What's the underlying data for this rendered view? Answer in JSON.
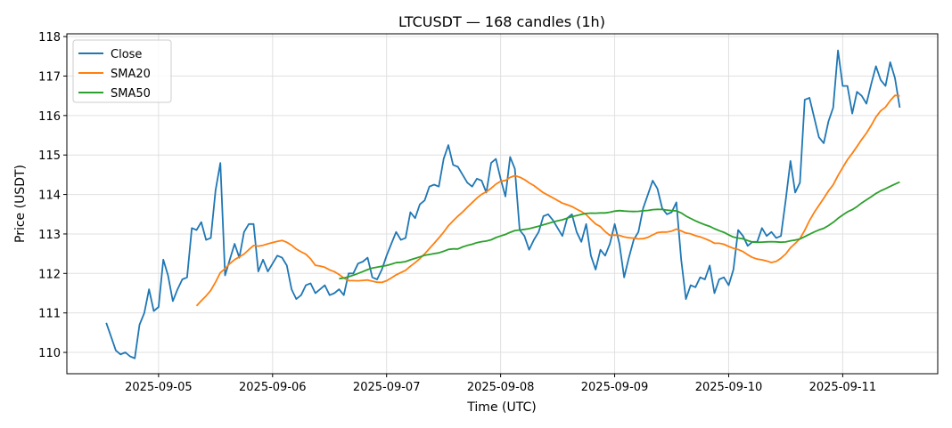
{
  "chart_data": {
    "type": "line",
    "title": "LTCUSDT — 168 candles (1h)",
    "xlabel": "Time (UTC)",
    "ylabel": "Price (USDT)",
    "start_time": "2025-09-04 13:00",
    "interval_hours": 1,
    "xlim_hours_from_start": [
      -8.3,
      175
    ],
    "ylim": [
      109.46,
      118.07
    ],
    "grid": true,
    "legend_position": "top-left",
    "x_ticks": [
      {
        "label": "2025-09-05",
        "hour": 11
      },
      {
        "label": "2025-09-06",
        "hour": 35
      },
      {
        "label": "2025-09-07",
        "hour": 59
      },
      {
        "label": "2025-09-08",
        "hour": 83
      },
      {
        "label": "2025-09-09",
        "hour": 107
      },
      {
        "label": "2025-09-10",
        "hour": 131
      },
      {
        "label": "2025-09-11",
        "hour": 155
      }
    ],
    "y_ticks": [
      110,
      111,
      112,
      113,
      114,
      115,
      116,
      117,
      118
    ],
    "series": [
      {
        "name": "Close",
        "color": "#1f77b4",
        "values": [
          110.75,
          110.4,
          110.05,
          109.95,
          110.0,
          109.9,
          109.85,
          110.7,
          111.0,
          111.6,
          111.05,
          111.15,
          112.35,
          111.95,
          111.3,
          111.6,
          111.85,
          111.9,
          113.15,
          113.1,
          113.3,
          112.85,
          112.9,
          114.1,
          114.8,
          111.95,
          112.35,
          112.75,
          112.4,
          113.05,
          113.25,
          113.25,
          112.05,
          112.35,
          112.05,
          112.25,
          112.45,
          112.4,
          112.2,
          111.6,
          111.35,
          111.45,
          111.7,
          111.75,
          111.5,
          111.6,
          111.7,
          111.45,
          111.5,
          111.6,
          111.45,
          112.0,
          112.0,
          112.25,
          112.3,
          112.4,
          111.9,
          111.85,
          112.1,
          112.45,
          112.75,
          113.05,
          112.85,
          112.9,
          113.55,
          113.4,
          113.75,
          113.85,
          114.2,
          114.25,
          114.2,
          114.9,
          115.25,
          114.75,
          114.7,
          114.5,
          114.3,
          114.2,
          114.4,
          114.35,
          114.05,
          114.8,
          114.9,
          114.4,
          113.95,
          114.95,
          114.65,
          113.1,
          112.95,
          112.6,
          112.85,
          113.05,
          113.45,
          113.5,
          113.35,
          113.15,
          112.95,
          113.4,
          113.5,
          113.05,
          112.8,
          113.25,
          112.45,
          112.1,
          112.6,
          112.45,
          112.75,
          113.25,
          112.75,
          111.9,
          112.4,
          112.85,
          113.05,
          113.65,
          114.0,
          114.35,
          114.15,
          113.65,
          113.5,
          113.55,
          113.8,
          112.35,
          111.35,
          111.7,
          111.65,
          111.9,
          111.85,
          112.2,
          111.5,
          111.85,
          111.9,
          111.7,
          112.1,
          113.1,
          112.95,
          112.7,
          112.8,
          112.8,
          113.15,
          112.95,
          113.05,
          112.9,
          112.95,
          113.85,
          114.85,
          114.05,
          114.3,
          116.4,
          116.45,
          115.95,
          115.45,
          115.3,
          115.85,
          116.2,
          117.65,
          116.75,
          116.75,
          116.05,
          116.6,
          116.5,
          116.3,
          116.8,
          117.25,
          116.9,
          116.75,
          117.35,
          116.95,
          116.2
        ]
      },
      {
        "name": "SMA20",
        "color": "#ff7f0e",
        "window": 20
      },
      {
        "name": "SMA50",
        "color": "#2ca02c",
        "window": 50
      }
    ]
  }
}
